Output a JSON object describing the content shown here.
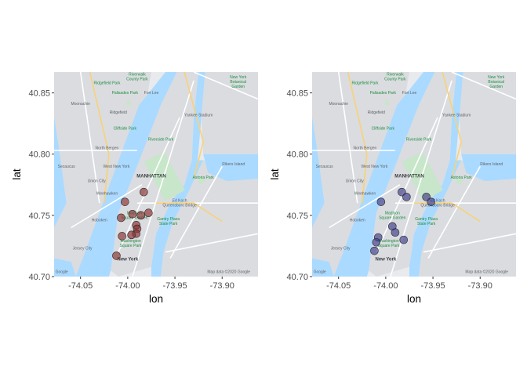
{
  "colors": {
    "water": "#aadaff",
    "land": "#e8eaed",
    "urban": "#dadce0",
    "park": "#c8e6c9",
    "road": "#ffffff",
    "highway": "#f8d277",
    "panel1_point_fill": "#8b2d2d",
    "panel2_point_fill": "#3d3a8a",
    "point_stroke": "#2b2b2b",
    "tick": "#333333"
  },
  "map_labels": [
    {
      "text": "Riverwalk\nCounty Park",
      "lon": -73.99,
      "lat": 40.864
    },
    {
      "text": "New York\nBotanical\nGarden",
      "lon": -73.883,
      "lat": 40.862
    },
    {
      "text": "Ridgefield Park",
      "lon": -74.022,
      "lat": 40.857
    },
    {
      "text": "Palisades Park",
      "lon": -74.003,
      "lat": 40.849
    },
    {
      "text": "Fort Lee",
      "lon": -73.975,
      "lat": 40.849
    },
    {
      "text": "Moonachie",
      "lon": -74.05,
      "lat": 40.84
    },
    {
      "text": "Ridgefield",
      "lon": -74.01,
      "lat": 40.833
    },
    {
      "text": "Yankee Stadium",
      "lon": -73.925,
      "lat": 40.831
    },
    {
      "text": "Cliffside Park",
      "lon": -74.003,
      "lat": 40.82
    },
    {
      "text": "Riverside Park",
      "lon": -73.965,
      "lat": 40.811
    },
    {
      "text": "North Bergen",
      "lon": -74.022,
      "lat": 40.804
    },
    {
      "text": "Secaucus",
      "lon": -74.065,
      "lat": 40.789
    },
    {
      "text": "West New York",
      "lon": -74.012,
      "lat": 40.789
    },
    {
      "text": "Astoria Park",
      "lon": -73.92,
      "lat": 40.78
    },
    {
      "text": "Rikers Island",
      "lon": -73.888,
      "lat": 40.791
    },
    {
      "text": "MANHATTAN",
      "lon": -73.975,
      "lat": 40.781
    },
    {
      "text": "Union City",
      "lon": -74.033,
      "lat": 40.777
    },
    {
      "text": "Weehawken",
      "lon": -74.022,
      "lat": 40.767
    },
    {
      "text": "Ed Koch\nQueensboro Bridge",
      "lon": -73.945,
      "lat": 40.761
    },
    {
      "text": "Hoboken",
      "lon": -74.03,
      "lat": 40.745
    },
    {
      "text": "Madison\nSquare Garden",
      "lon": -73.993,
      "lat": 40.751
    },
    {
      "text": "Gantry Plaza\nState Park",
      "lon": -73.957,
      "lat": 40.746
    },
    {
      "text": "Washington\nSquare Park",
      "lon": -73.997,
      "lat": 40.728
    },
    {
      "text": "Jersey City",
      "lon": -74.048,
      "lat": 40.722
    },
    {
      "text": "New York",
      "lon": -74.0,
      "lat": 40.713
    },
    {
      "text": "Google",
      "lon": -74.07,
      "lat": 40.703
    },
    {
      "text": "Map data ©2020 Google",
      "lon": -73.893,
      "lat": 40.703
    }
  ],
  "chart_data": [
    {
      "type": "scatter",
      "xlabel": "lon",
      "ylabel": "lat",
      "xlim": [
        -74.078,
        -73.862
      ],
      "ylim": [
        40.7,
        40.867
      ],
      "x_ticks": [
        -74.05,
        -74.0,
        -73.95,
        -73.9
      ],
      "x_tick_labels": [
        "-74.05",
        "-74.00",
        "-73.95",
        "-73.90"
      ],
      "y_ticks": [
        40.7,
        40.75,
        40.8,
        40.85
      ],
      "y_tick_labels": [
        "40.70",
        "40.75",
        "40.80",
        "40.85"
      ],
      "grid": false,
      "background": "map",
      "points": [
        {
          "lon": -73.983,
          "lat": 40.769
        },
        {
          "lon": -73.978,
          "lat": 40.752
        },
        {
          "lon": -74.003,
          "lat": 40.761
        },
        {
          "lon": -73.995,
          "lat": 40.751
        },
        {
          "lon": -73.986,
          "lat": 40.75
        },
        {
          "lon": -74.007,
          "lat": 40.748
        },
        {
          "lon": -73.991,
          "lat": 40.742
        },
        {
          "lon": -73.99,
          "lat": 40.739
        },
        {
          "lon": -73.991,
          "lat": 40.735
        },
        {
          "lon": -73.996,
          "lat": 40.734
        },
        {
          "lon": -74.006,
          "lat": 40.733
        },
        {
          "lon": -74.012,
          "lat": 40.717
        }
      ]
    },
    {
      "type": "scatter",
      "xlabel": "lon",
      "ylabel": "lat",
      "xlim": [
        -74.078,
        -73.862
      ],
      "ylim": [
        40.7,
        40.867
      ],
      "x_ticks": [
        -74.05,
        -74.0,
        -73.95,
        -73.9
      ],
      "x_tick_labels": [
        "-74.05",
        "-74.00",
        "-73.95",
        "-73.90"
      ],
      "y_ticks": [
        40.7,
        40.75,
        40.8,
        40.85
      ],
      "y_tick_labels": [
        "40.70",
        "40.75",
        "40.80",
        "40.85"
      ],
      "grid": false,
      "background": "map",
      "points": [
        {
          "lon": -73.983,
          "lat": 40.769
        },
        {
          "lon": -73.978,
          "lat": 40.765
        },
        {
          "lon": -74.005,
          "lat": 40.761
        },
        {
          "lon": -73.957,
          "lat": 40.765
        },
        {
          "lon": -73.952,
          "lat": 40.761
        },
        {
          "lon": -73.993,
          "lat": 40.741
        },
        {
          "lon": -73.99,
          "lat": 40.736
        },
        {
          "lon": -74.008,
          "lat": 40.732
        },
        {
          "lon": -73.981,
          "lat": 40.73
        },
        {
          "lon": -74.01,
          "lat": 40.728
        },
        {
          "lon": -74.012,
          "lat": 40.721
        }
      ]
    }
  ]
}
